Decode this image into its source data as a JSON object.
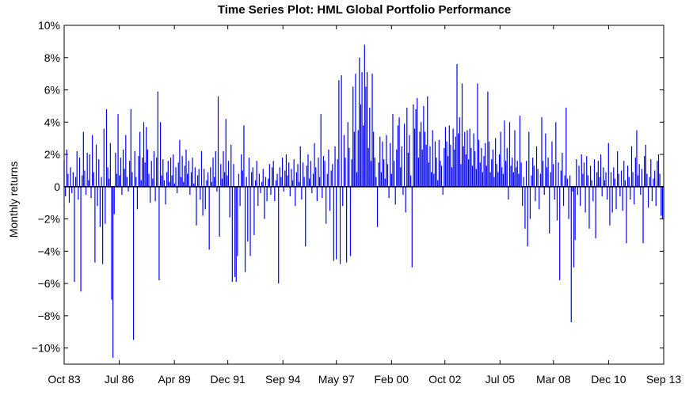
{
  "chart_data": {
    "type": "bar",
    "title": "Time Series Plot: HML Global Portfolio Performance",
    "xlabel": "",
    "ylabel": "Monthly returns",
    "ylim": [
      -11,
      10
    ],
    "y_ticks": [
      -10,
      -8,
      -6,
      -4,
      -2,
      0,
      2,
      4,
      6,
      8,
      10
    ],
    "y_tick_labels": [
      "−10%",
      "−8%",
      "−6%",
      "−4%",
      "−2%",
      "0",
      "2%",
      "4%",
      "6%",
      "8%",
      "10%"
    ],
    "x_start": "1983-10",
    "x_end": "2013-09",
    "x_ticks": [
      "1983-10",
      "1986-07",
      "1989-04",
      "1991-12",
      "1994-09",
      "1997-05",
      "2000-02",
      "2002-10",
      "2005-07",
      "2008-03",
      "2010-12",
      "2013-09"
    ],
    "x_tick_labels": [
      "Oct 83",
      "Jul 86",
      "Apr 89",
      "Dec 91",
      "Sep 94",
      "May 97",
      "Feb 00",
      "Oct 02",
      "Jul 05",
      "Mar 08",
      "Dec 10",
      "Sep 13"
    ],
    "grid": false,
    "legend": "none",
    "color": "#0000ff",
    "values": [
      1.6,
      -0.6,
      2.3,
      0.8,
      -1.0,
      1.2,
      -0.4,
      0.9,
      -5.9,
      0.6,
      2.2,
      -0.8,
      1.8,
      -6.5,
      0.7,
      3.4,
      1.0,
      -0.5,
      2.1,
      0.4,
      2.0,
      -0.7,
      3.2,
      0.9,
      -4.7,
      2.6,
      -1.2,
      1.7,
      -2.5,
      0.6,
      -4.8,
      3.6,
      -2.3,
      4.8,
      1.2,
      0.5,
      2.7,
      -7.0,
      -10.6,
      -1.7,
      2.1,
      0.8,
      4.5,
      0.7,
      1.8,
      -0.5,
      2.3,
      1.1,
      3.2,
      0.6,
      -0.3,
      1.6,
      4.8,
      0.9,
      -9.5,
      2.2,
      0.6,
      -1.4,
      1.9,
      3.4,
      0.4,
      1.8,
      4.0,
      1.5,
      3.7,
      2.3,
      0.8,
      -1.0,
      1.6,
      0.5,
      2.2,
      -0.9,
      1.8,
      5.9,
      -5.8,
      4.0,
      0.7,
      1.7,
      0.4,
      -1.1,
      0.9,
      1.6,
      0.3,
      1.8,
      0.7,
      2.0,
      0.2,
      1.2,
      -0.4,
      1.5,
      2.9,
      0.6,
      1.9,
      0.3,
      1.3,
      2.3,
      0.8,
      1.6,
      -0.5,
      0.9,
      1.8,
      0.2,
      1.2,
      -2.4,
      0.7,
      1.1,
      -0.8,
      2.2,
      -1.8,
      1.1,
      -1.4,
      0.4,
      0.9,
      -3.9,
      1.2,
      0.3,
      1.8,
      0.6,
      2.2,
      -0.3,
      5.6,
      -3.1,
      1.4,
      0.5,
      2.2,
      0.9,
      4.2,
      0.7,
      1.6,
      -1.9,
      2.6,
      -5.9,
      1.4,
      -5.6,
      -5.9,
      -4.3,
      0.8,
      -1.2,
      2.0,
      1.0,
      3.8,
      -5.3,
      0.6,
      -3.4,
      1.8,
      -4.3,
      0.9,
      1.2,
      -3.0,
      0.4,
      1.6,
      -1.2,
      0.8,
      -0.4,
      0.3,
      1.1,
      -2.0,
      0.6,
      -0.9,
      0.5,
      1.4,
      -0.5,
      1.2,
      1.6,
      -0.9,
      0.4,
      0.8,
      -6.0,
      1.2,
      0.6,
      1.8,
      -0.3,
      1.0,
      2.0,
      0.7,
      1.5,
      -0.6,
      1.1,
      0.4,
      1.7,
      -1.2,
      0.9,
      1.4,
      0.3,
      2.5,
      -0.8,
      1.5,
      0.6,
      -3.7,
      1.3,
      2.0,
      0.5,
      1.6,
      -0.4,
      0.8,
      2.7,
      1.2,
      -0.9,
      1.8,
      0.6,
      4.5,
      -0.7,
      1.9,
      1.6,
      -2.3,
      0.8,
      2.3,
      -1.5,
      1.0,
      1.4,
      -4.6,
      2.5,
      -4.5,
      1.7,
      6.6,
      -4.8,
      6.9,
      -1.2,
      3.2,
      1.8,
      -4.7,
      4.0,
      2.4,
      -4.3,
      1.7,
      6.2,
      3.4,
      7.0,
      0.9,
      3.5,
      8.0,
      5.1,
      7.1,
      3.8,
      8.8,
      6.2,
      7.1,
      2.4,
      4.9,
      1.6,
      7.0,
      3.4,
      1.8,
      0.6,
      -2.5,
      1.5,
      3.1,
      0.9,
      2.8,
      1.7,
      0.5,
      3.2,
      1.4,
      -0.7,
      2.7,
      0.8,
      4.5,
      1.6,
      -1.1,
      2.3,
      3.8,
      4.3,
      1.2,
      2.5,
      -0.5,
      3.9,
      -1.6,
      4.9,
      2.1,
      3.2,
      0.7,
      -5.0,
      5.1,
      3.6,
      4.8,
      5.5,
      1.8,
      3.4,
      4.0,
      2.3,
      5.0,
      3.4,
      2.6,
      5.6,
      1.5,
      2.5,
      0.9,
      3.5,
      0.8,
      2.8,
      1.8,
      0.4,
      2.9,
      1.6,
      1.3,
      -0.5,
      2.4,
      3.7,
      2.8,
      1.9,
      3.8,
      2.6,
      1.2,
      3.6,
      2.3,
      3.1,
      7.6,
      3.3,
      4.3,
      1.4,
      6.4,
      2.5,
      3.4,
      2.0,
      3.5,
      1.7,
      3.6,
      2.4,
      1.3,
      3.3,
      2.2,
      1.1,
      6.4,
      2.9,
      1.5,
      2.4,
      0.9,
      1.9,
      2.7,
      1.3,
      5.9,
      2.8,
      0.9,
      1.7,
      2.3,
      0.6,
      3.0,
      1.4,
      0.9,
      2.0,
      3.4,
      1.2,
      0.8,
      4.1,
      1.6,
      2.4,
      -0.8,
      4.0,
      1.3,
      1.8,
      0.9,
      3.5,
      1.2,
      1.6,
      0.8,
      4.4,
      1.5,
      -1.2,
      0.6,
      -2.6,
      1.6,
      -3.7,
      3.4,
      -2.0,
      0.7,
      1.8,
      1.3,
      -0.9,
      2.5,
      1.1,
      -1.4,
      0.8,
      4.3,
      1.6,
      -0.5,
      3.3,
      1.2,
      1.8,
      -2.9,
      0.9,
      2.8,
      1.4,
      -0.8,
      4.0,
      -2.1,
      1.5,
      -5.8,
      1.0,
      2.1,
      -1.2,
      0.7,
      4.9,
      0.5,
      -2.0,
      0.7,
      -8.4,
      -0.3,
      -5.0,
      -3.3,
      1.7,
      -0.5,
      1.3,
      -1.2,
      2.0,
      0.8,
      1.5,
      -1.6,
      1.9,
      0.7,
      -2.6,
      1.3,
      0.4,
      -0.9,
      1.7,
      -3.2,
      0.9,
      1.6,
      0.6,
      2.0,
      -0.6,
      1.2,
      0.4,
      0.9,
      -0.8,
      2.7,
      -2.4,
      0.9,
      -1.6,
      1.2,
      0.5,
      -1.4,
      2.2,
      0.8,
      -0.6,
      1.0,
      -1.5,
      1.6,
      0.4,
      -3.5,
      1.3,
      0.6,
      -0.8,
      2.5,
      0.9,
      -1.1,
      1.8,
      3.5,
      0.7,
      1.4,
      -0.5,
      1.1,
      -3.5,
      1.9,
      2.6,
      0.8,
      -1.3,
      0.6,
      1.7,
      -0.9,
      0.5,
      1.0,
      -1.2,
      1.6,
      2.0,
      0.8,
      -1.8,
      -2.0,
      -2.0
    ]
  }
}
